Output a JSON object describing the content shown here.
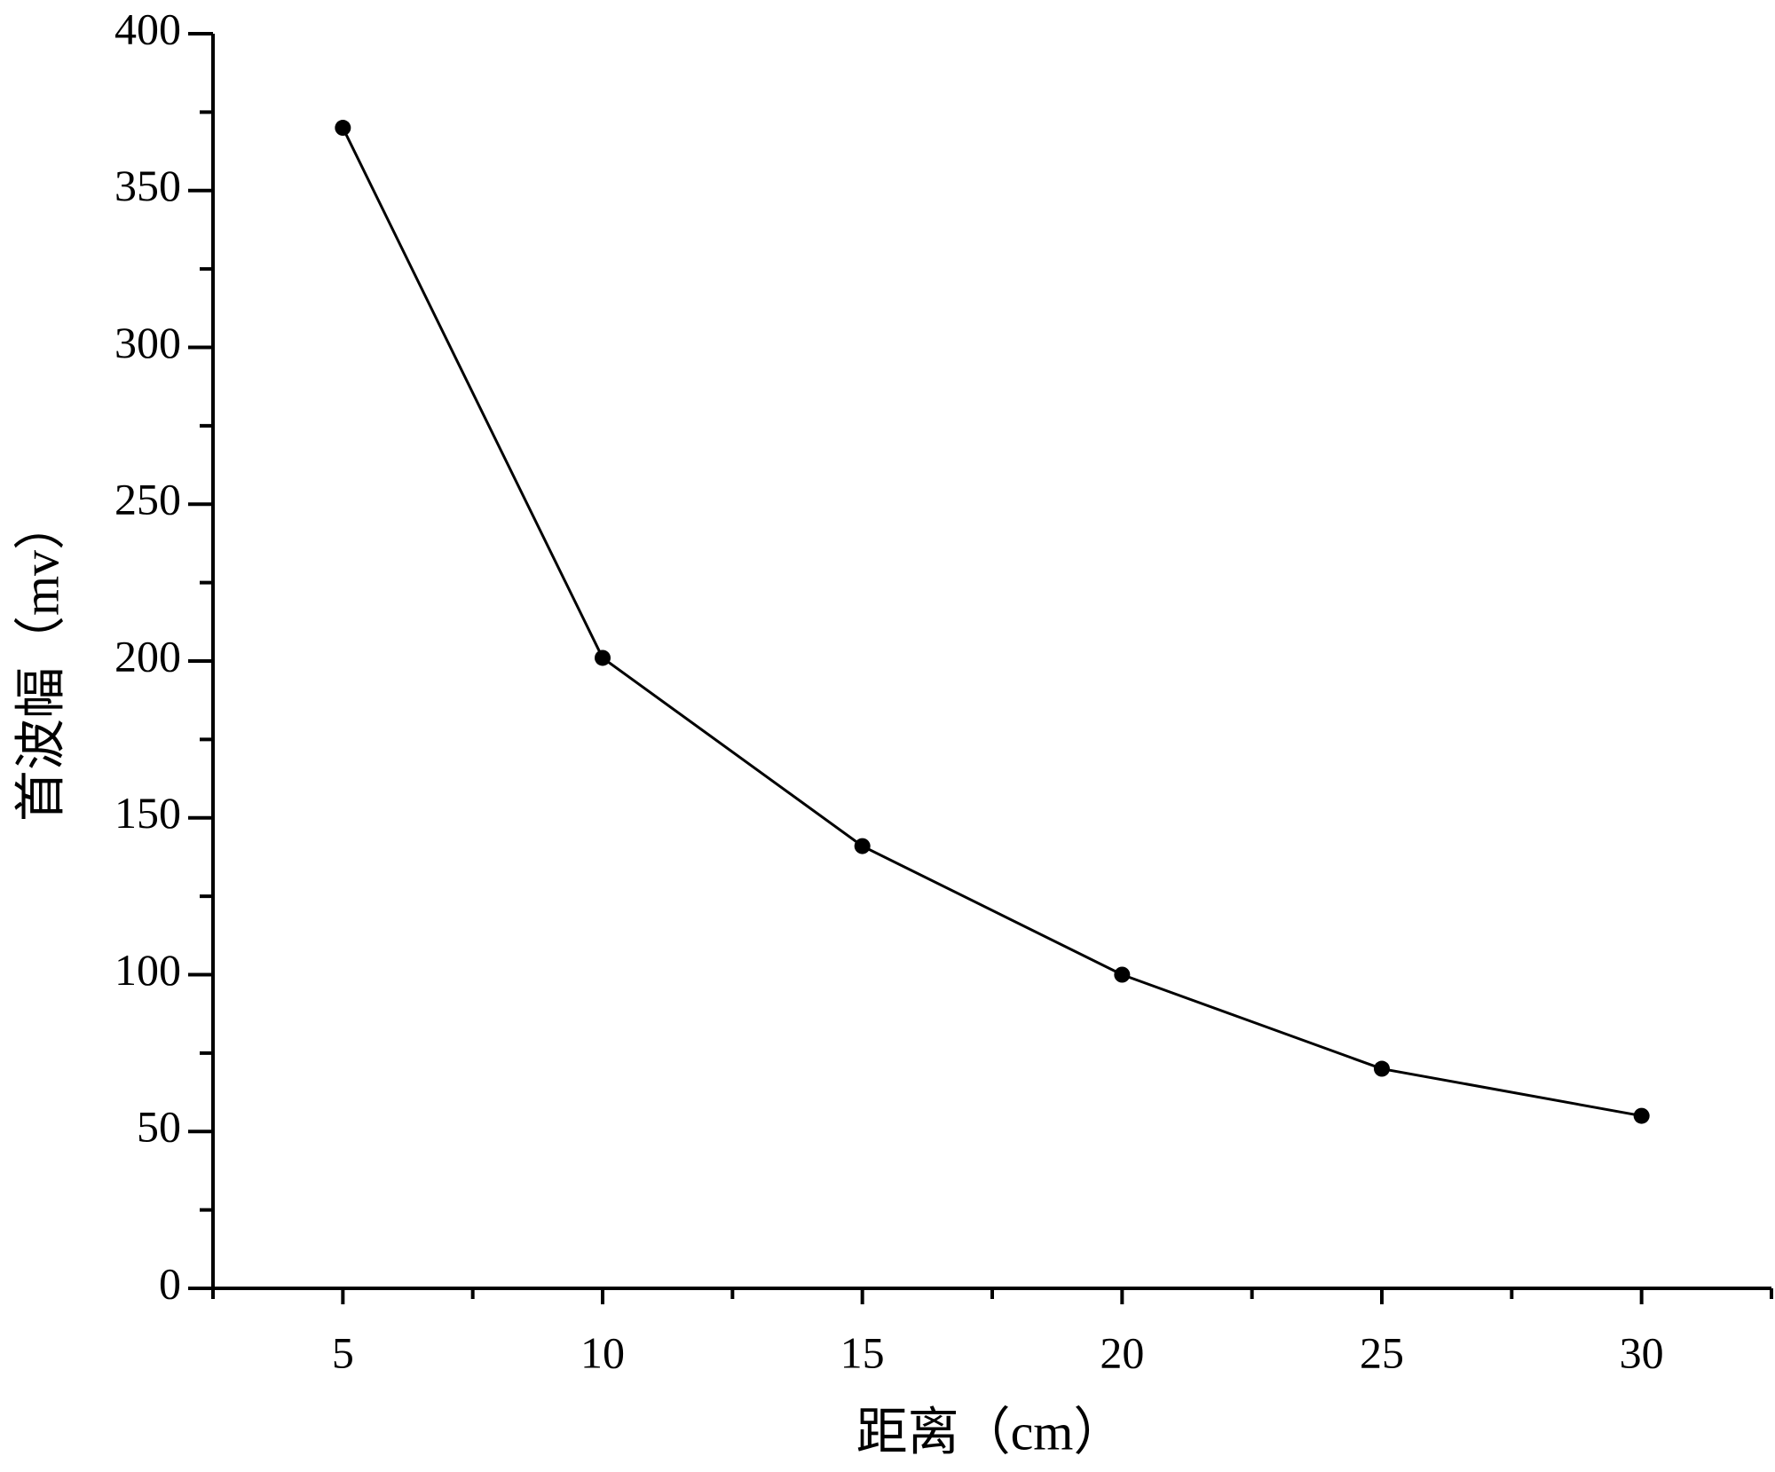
{
  "chart_data": {
    "type": "line",
    "x_label": "距离（cm）",
    "y_label": "首波幅（mv）",
    "x": [
      5,
      10,
      15,
      20,
      25,
      30
    ],
    "series": [
      {
        "color": "#000000",
        "values": [
          370,
          201,
          141,
          100,
          70,
          55
        ]
      }
    ],
    "xlim": [
      2.5,
      32.5
    ],
    "xticks": [
      5,
      10,
      15,
      20,
      25,
      30
    ],
    "ylim": [
      0,
      400
    ],
    "yticks": [
      0,
      50,
      100,
      150,
      200,
      250,
      300,
      350,
      400
    ]
  }
}
